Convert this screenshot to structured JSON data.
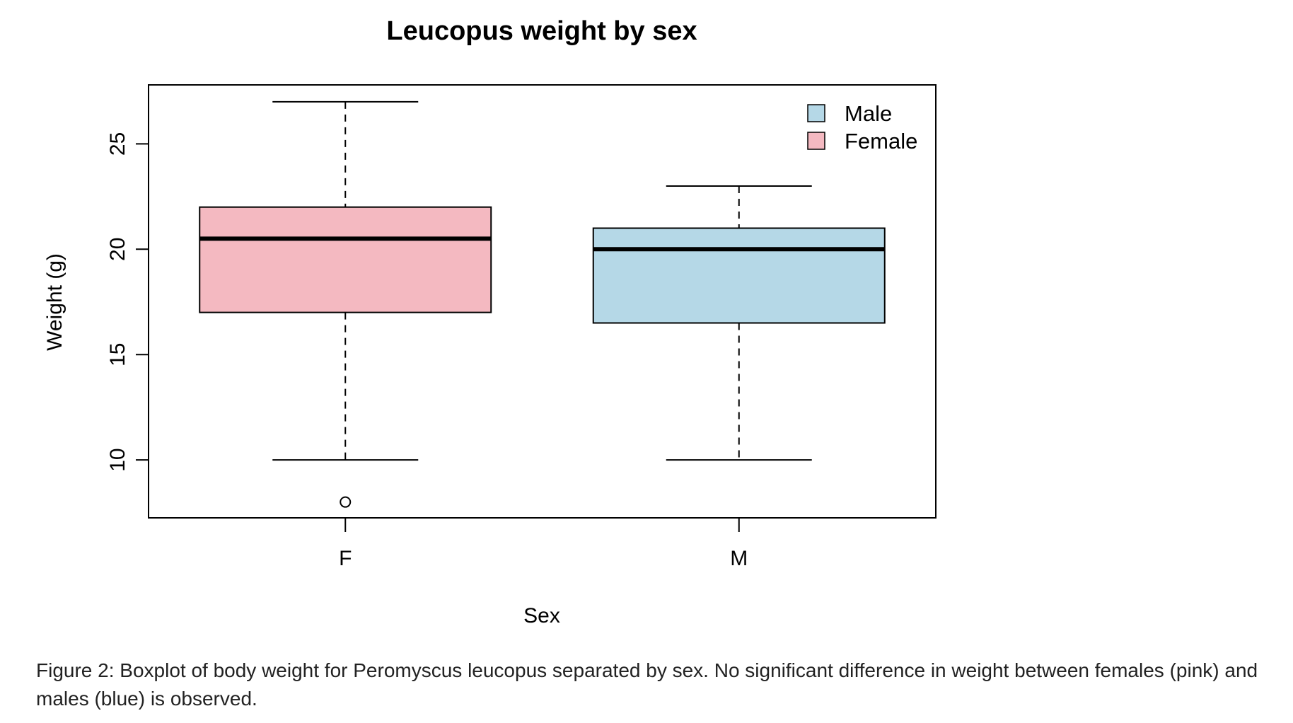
{
  "chart_data": {
    "type": "boxplot",
    "title": "Leucopus weight by sex",
    "xlabel": "Sex",
    "ylabel": "Weight (g)",
    "categories": [
      "F",
      "M"
    ],
    "ylim": [
      7.25,
      27.8
    ],
    "yticks": [
      10,
      15,
      20,
      25
    ],
    "yticklabels": [
      "10",
      "15",
      "20",
      "25"
    ],
    "boxes": [
      {
        "category": "F",
        "whisker_low": 10,
        "q1": 17,
        "median": 20.5,
        "q3": 22,
        "whisker_high": 27,
        "outliers": [
          8
        ],
        "color": "#f4b9c1"
      },
      {
        "category": "M",
        "whisker_low": 10,
        "q1": 16.5,
        "median": 20,
        "q3": 21,
        "whisker_high": 23,
        "outliers": [],
        "color": "#b5d8e7"
      }
    ],
    "legend": {
      "placement": "top-right",
      "entries": [
        {
          "label": "Male",
          "color": "#b5d8e7"
        },
        {
          "label": "Female",
          "color": "#f4b9c1"
        }
      ]
    },
    "grid": false
  },
  "caption": "Figure 2: Boxplot of body weight for Peromyscus leucopus separated by sex. No significant difference in weight between females (pink) and males (blue) is observed."
}
